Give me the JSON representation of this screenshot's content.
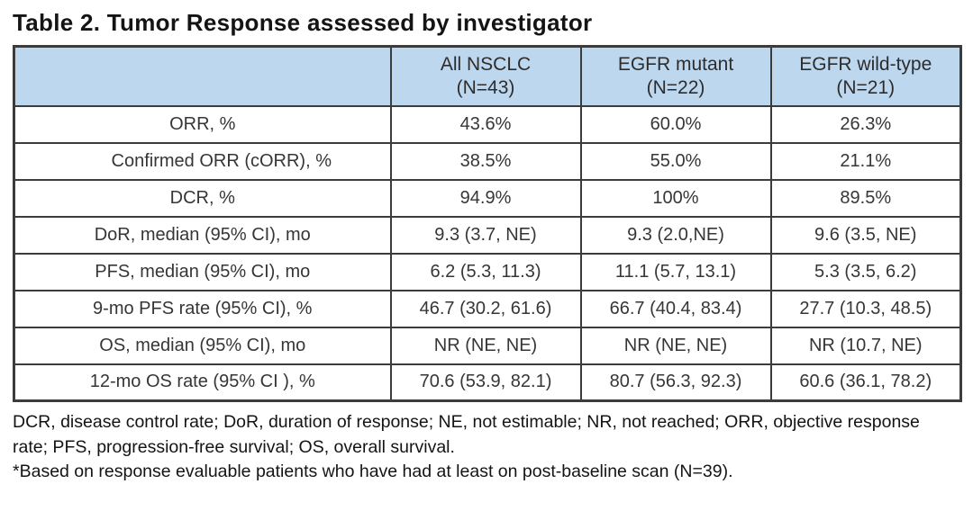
{
  "title": "Table 2. Tumor Response assessed by investigator",
  "table": {
    "headers": [
      "All NSCLC\n(N=43)",
      "EGFR mutant\n(N=22)",
      "EGFR wild-type\n(N=21)"
    ],
    "rows": [
      {
        "label": "ORR, %",
        "values": [
          "43.6%",
          "60.0%",
          "26.3%"
        ]
      },
      {
        "label": "Confirmed ORR (cORR), %",
        "values": [
          "38.5%",
          "55.0%",
          "21.1%"
        ]
      },
      {
        "label": "DCR, %",
        "values": [
          "94.9%",
          "100%",
          "89.5%"
        ]
      },
      {
        "label": "DoR, median (95% CI), mo",
        "values": [
          "9.3 (3.7, NE)",
          "9.3 (2.0,NE)",
          "9.6 (3.5, NE)"
        ]
      },
      {
        "label": "PFS, median (95% CI), mo",
        "values": [
          "6.2 (5.3, 11.3)",
          "11.1 (5.7, 13.1)",
          "5.3 (3.5, 6.2)"
        ]
      },
      {
        "label": "9-mo PFS rate (95% CI), %",
        "values": [
          "46.7 (30.2, 61.6)",
          "66.7 (40.4, 83.4)",
          "27.7 (10.3, 48.5)"
        ]
      },
      {
        "label": "OS, median (95% CI), mo",
        "values": [
          "NR (NE, NE)",
          "NR (NE, NE)",
          "NR (10.7, NE)"
        ]
      },
      {
        "label": "12-mo OS rate (95% CI ), %",
        "values": [
          "70.6 (53.9, 82.1)",
          "80.7 (56.3, 92.3)",
          "60.6 (36.1, 78.2)"
        ]
      }
    ]
  },
  "footnotes": [
    "DCR, disease control rate; DoR, duration of response; NE, not estimable; NR, not reached; ORR, objective response rate; PFS, progression-free survival; OS, overall survival.",
    "*Based on response evaluable patients who have had at least on post-baseline scan (N=39)."
  ],
  "colors": {
    "header_bg": "#bdd7ee",
    "border": "#3c3c3c",
    "cell_text": "#363636",
    "title_text": "#141414"
  }
}
